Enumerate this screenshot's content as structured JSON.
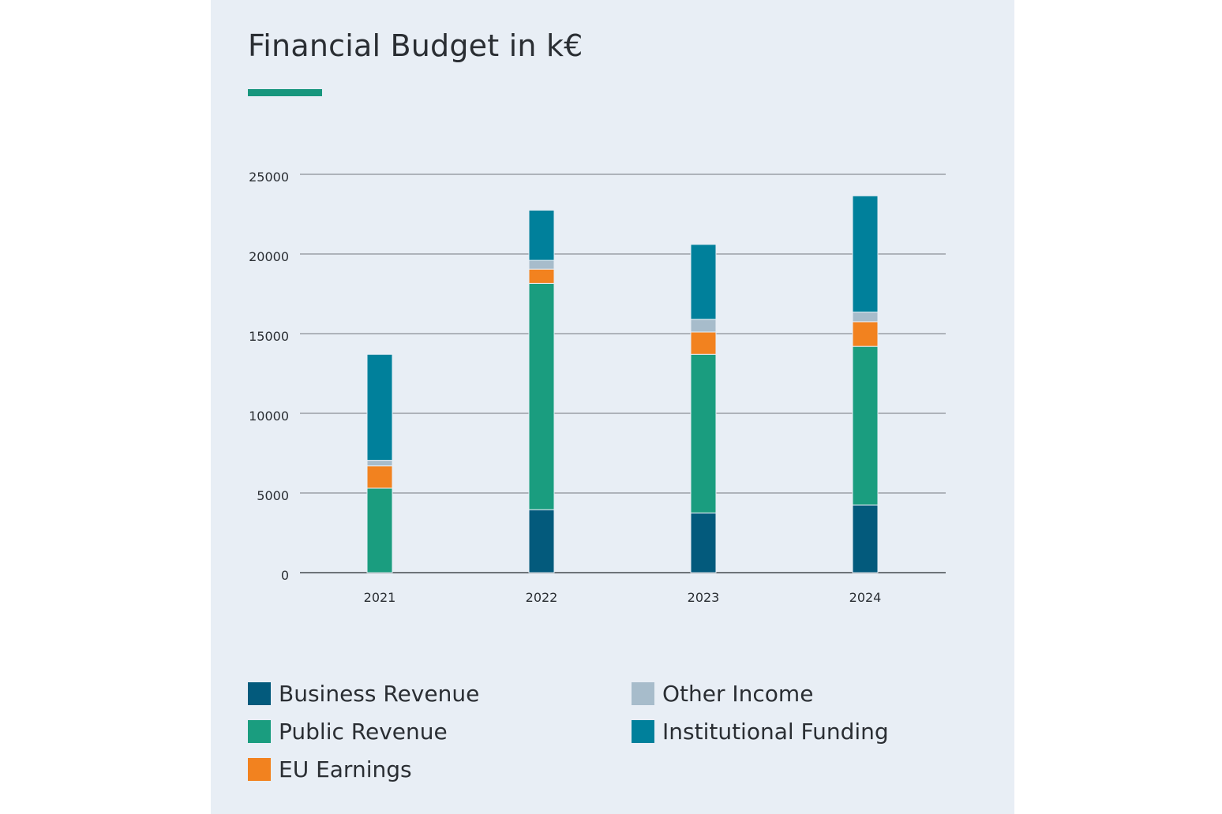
{
  "title": "Financial Budget in k€",
  "accent_color": "#17967d",
  "chart_data": {
    "type": "bar",
    "stacked": true,
    "title": "Financial Budget in k€",
    "categories": [
      "2021",
      "2022",
      "2023",
      "2024"
    ],
    "ylim": [
      0,
      25000
    ],
    "yticks": [
      "0",
      "5000",
      "10000",
      "15000",
      "20000",
      "25000"
    ],
    "grid": true,
    "legend_position": "bottom",
    "series": [
      {
        "name": "Business Revenue",
        "color": "#035a7c",
        "values": [
          0,
          3950,
          3750,
          4250
        ]
      },
      {
        "name": "Public Revenue",
        "color": "#1a9d7f",
        "values": [
          5300,
          14200,
          9950,
          9950
        ]
      },
      {
        "name": "EU Earnings",
        "color": "#f2821f",
        "values": [
          1400,
          900,
          1400,
          1550
        ]
      },
      {
        "name": "Other Income",
        "color": "#a7bccb",
        "values": [
          350,
          550,
          800,
          600
        ]
      },
      {
        "name": "Institutional Funding",
        "color": "#00809b",
        "values": [
          6650,
          3150,
          4700,
          7300
        ]
      }
    ]
  }
}
